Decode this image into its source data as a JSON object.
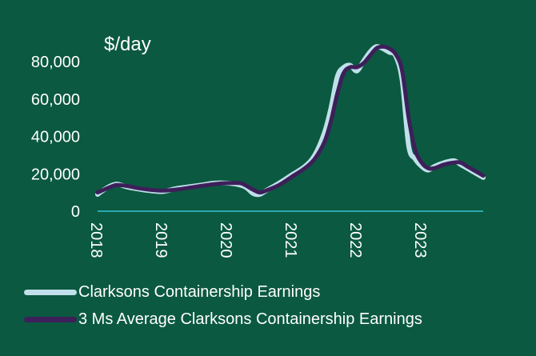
{
  "chart_data": {
    "type": "line",
    "title": "",
    "ylabel": "$/day",
    "xlabel": "",
    "ylim": [
      0,
      90000
    ],
    "yticks": [
      0,
      20000,
      40000,
      60000,
      80000
    ],
    "ytick_labels": [
      "0",
      "20,000",
      "40,000",
      "60,000",
      "80,000"
    ],
    "xlim": [
      2018.0,
      2023.95
    ],
    "xticks": [
      2018,
      2019,
      2020,
      2021,
      2022,
      2023
    ],
    "xtick_labels": [
      "2018",
      "2019",
      "2020",
      "2021",
      "2022",
      "2023"
    ],
    "grid": false,
    "legend_position": "bottom-left",
    "colors": {
      "background": "#0b5940",
      "text": "#ffffff",
      "axis": "#34c2d6",
      "earnings": "#bfe0ea",
      "average": "#3d1f5a"
    },
    "series": [
      {
        "name": "Clarksons Containership Earnings",
        "x": [
          2018.0,
          2018.1,
          2018.2,
          2018.3,
          2018.45,
          2018.6,
          2018.8,
          2019.0,
          2019.2,
          2019.4,
          2019.6,
          2019.8,
          2020.0,
          2020.2,
          2020.3,
          2020.4,
          2020.5,
          2020.6,
          2020.8,
          2021.0,
          2021.2,
          2021.35,
          2021.5,
          2021.6,
          2021.7,
          2021.8,
          2021.9,
          2022.0,
          2022.1,
          2022.2,
          2022.3,
          2022.4,
          2022.5,
          2022.6,
          2022.7,
          2022.8,
          2022.9,
          2023.0,
          2023.1,
          2023.2,
          2023.35,
          2023.5,
          2023.6,
          2023.7,
          2023.8,
          2023.95
        ],
        "y": [
          9000,
          11500,
          13500,
          14500,
          13000,
          12000,
          11000,
          10500,
          12000,
          13000,
          14000,
          15000,
          15000,
          14000,
          12500,
          9500,
          9000,
          11000,
          15000,
          19500,
          24000,
          30000,
          42000,
          55000,
          72000,
          77000,
          78000,
          75000,
          80000,
          85000,
          88000,
          87000,
          85000,
          83000,
          70000,
          35000,
          28000,
          24000,
          22000,
          24000,
          26000,
          27000,
          25000,
          23000,
          21000,
          18000
        ]
      },
      {
        "name": "3 Ms Average Clarksons Containership Earnings",
        "x": [
          2018.0,
          2018.1,
          2018.2,
          2018.3,
          2018.45,
          2018.6,
          2018.8,
          2019.0,
          2019.2,
          2019.4,
          2019.6,
          2019.8,
          2020.0,
          2020.2,
          2020.3,
          2020.4,
          2020.5,
          2020.6,
          2020.8,
          2021.0,
          2021.2,
          2021.35,
          2021.5,
          2021.6,
          2021.7,
          2021.8,
          2021.9,
          2022.0,
          2022.1,
          2022.2,
          2022.3,
          2022.4,
          2022.5,
          2022.6,
          2022.7,
          2022.8,
          2022.9,
          2023.0,
          2023.1,
          2023.2,
          2023.35,
          2023.5,
          2023.6,
          2023.7,
          2023.8,
          2023.95
        ],
        "y": [
          10000,
          11500,
          13000,
          14000,
          13500,
          12500,
          11500,
          11000,
          11500,
          12500,
          13500,
          14500,
          15000,
          15000,
          13500,
          11500,
          10000,
          11000,
          14000,
          18500,
          23000,
          28000,
          37000,
          48000,
          63000,
          74000,
          77000,
          77000,
          79000,
          83000,
          87000,
          88000,
          87000,
          84000,
          75000,
          50000,
          33000,
          26000,
          23000,
          23000,
          25000,
          26000,
          26000,
          24000,
          22000,
          19000
        ]
      }
    ]
  }
}
